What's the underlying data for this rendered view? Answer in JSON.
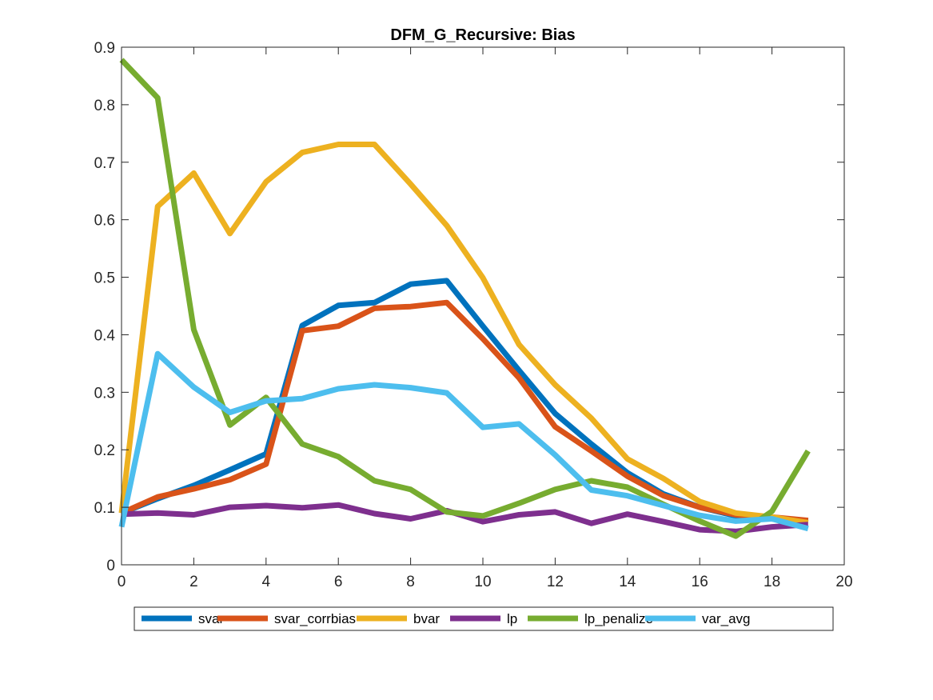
{
  "chart_data": {
    "type": "line",
    "title": "DFM_G_Recursive: Bias",
    "xlabel": "",
    "ylabel": "",
    "xlim": [
      0,
      20
    ],
    "ylim": [
      0,
      0.9
    ],
    "xticks": [
      0,
      2,
      4,
      6,
      8,
      10,
      12,
      14,
      16,
      18,
      20
    ],
    "yticks": [
      0,
      0.1,
      0.2,
      0.3,
      0.4,
      0.5,
      0.6,
      0.7,
      0.8,
      0.9
    ],
    "grid": false,
    "legend_position": "bottom",
    "x": [
      0,
      1,
      2,
      3,
      4,
      5,
      6,
      7,
      8,
      9,
      10,
      11,
      12,
      13,
      14,
      15,
      16,
      17,
      18,
      19
    ],
    "series": [
      {
        "name": "svar",
        "color": "#0072BD",
        "values": [
          0.09,
          0.115,
          0.138,
          0.165,
          0.193,
          0.416,
          0.451,
          0.456,
          0.488,
          0.494,
          0.415,
          0.338,
          0.263,
          0.21,
          0.16,
          0.123,
          0.1,
          0.085,
          0.08,
          0.075
        ]
      },
      {
        "name": "svar_corrbias",
        "color": "#D95319",
        "values": [
          0.09,
          0.118,
          0.132,
          0.148,
          0.175,
          0.407,
          0.415,
          0.446,
          0.449,
          0.456,
          0.393,
          0.325,
          0.24,
          0.198,
          0.154,
          0.12,
          0.1,
          0.087,
          0.083,
          0.077
        ]
      },
      {
        "name": "bvar",
        "color": "#EDB120",
        "values": [
          0.09,
          0.623,
          0.681,
          0.576,
          0.666,
          0.717,
          0.731,
          0.731,
          0.662,
          0.59,
          0.499,
          0.383,
          0.313,
          0.255,
          0.184,
          0.15,
          0.11,
          0.09,
          0.083,
          0.073
        ]
      },
      {
        "name": "lp",
        "color": "#7E2F8E",
        "values": [
          0.088,
          0.09,
          0.087,
          0.1,
          0.103,
          0.099,
          0.104,
          0.089,
          0.08,
          0.094,
          0.075,
          0.087,
          0.092,
          0.072,
          0.088,
          0.075,
          0.061,
          0.058,
          0.066,
          0.07
        ]
      },
      {
        "name": "lp_penalize",
        "color": "#77AC30",
        "values": [
          0.878,
          0.812,
          0.409,
          0.243,
          0.291,
          0.21,
          0.188,
          0.146,
          0.131,
          0.092,
          0.085,
          0.107,
          0.131,
          0.146,
          0.135,
          0.105,
          0.076,
          0.05,
          0.093,
          0.198
        ]
      },
      {
        "name": "var_avg",
        "color": "#4DBEEE",
        "values": [
          0.066,
          0.367,
          0.309,
          0.265,
          0.285,
          0.289,
          0.306,
          0.313,
          0.308,
          0.299,
          0.239,
          0.245,
          0.191,
          0.13,
          0.12,
          0.103,
          0.086,
          0.076,
          0.08,
          0.063
        ]
      }
    ]
  }
}
